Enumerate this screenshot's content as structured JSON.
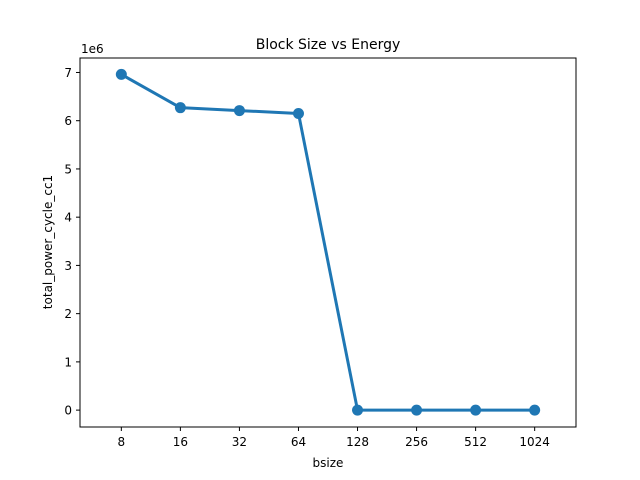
{
  "chart_data": {
    "type": "line",
    "title": "Block Size vs Energy",
    "xlabel": "bsize",
    "ylabel": "total_power_cycle_cc1",
    "y_multiplier_label": "1e6",
    "categories": [
      "8",
      "16",
      "32",
      "64",
      "128",
      "256",
      "512",
      "1024"
    ],
    "series": [
      {
        "values": [
          6960000,
          6270000,
          6210000,
          6150000,
          0,
          0,
          0,
          0
        ]
      }
    ],
    "ylim": [
      -350000,
      7300000
    ],
    "yticks": [
      0,
      1000000,
      2000000,
      3000000,
      4000000,
      5000000,
      6000000,
      7000000
    ],
    "ytick_labels": [
      "0",
      "1",
      "2",
      "3",
      "4",
      "5",
      "6",
      "7"
    ],
    "grid": false,
    "line_color": "#1f77b4"
  }
}
